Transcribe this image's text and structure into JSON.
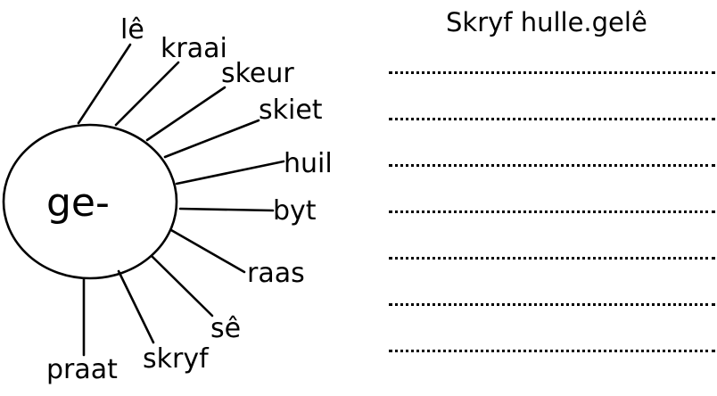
{
  "diagram": {
    "center_label": "ge-",
    "words": [
      "lê",
      "kraai",
      "skeur",
      "skiet",
      "huil",
      "byt",
      "raas",
      "sê",
      "skryf",
      "praat"
    ]
  },
  "instruction": {
    "text": "Skryf hulle.gelê"
  },
  "answer_lines": {
    "count": 7
  }
}
